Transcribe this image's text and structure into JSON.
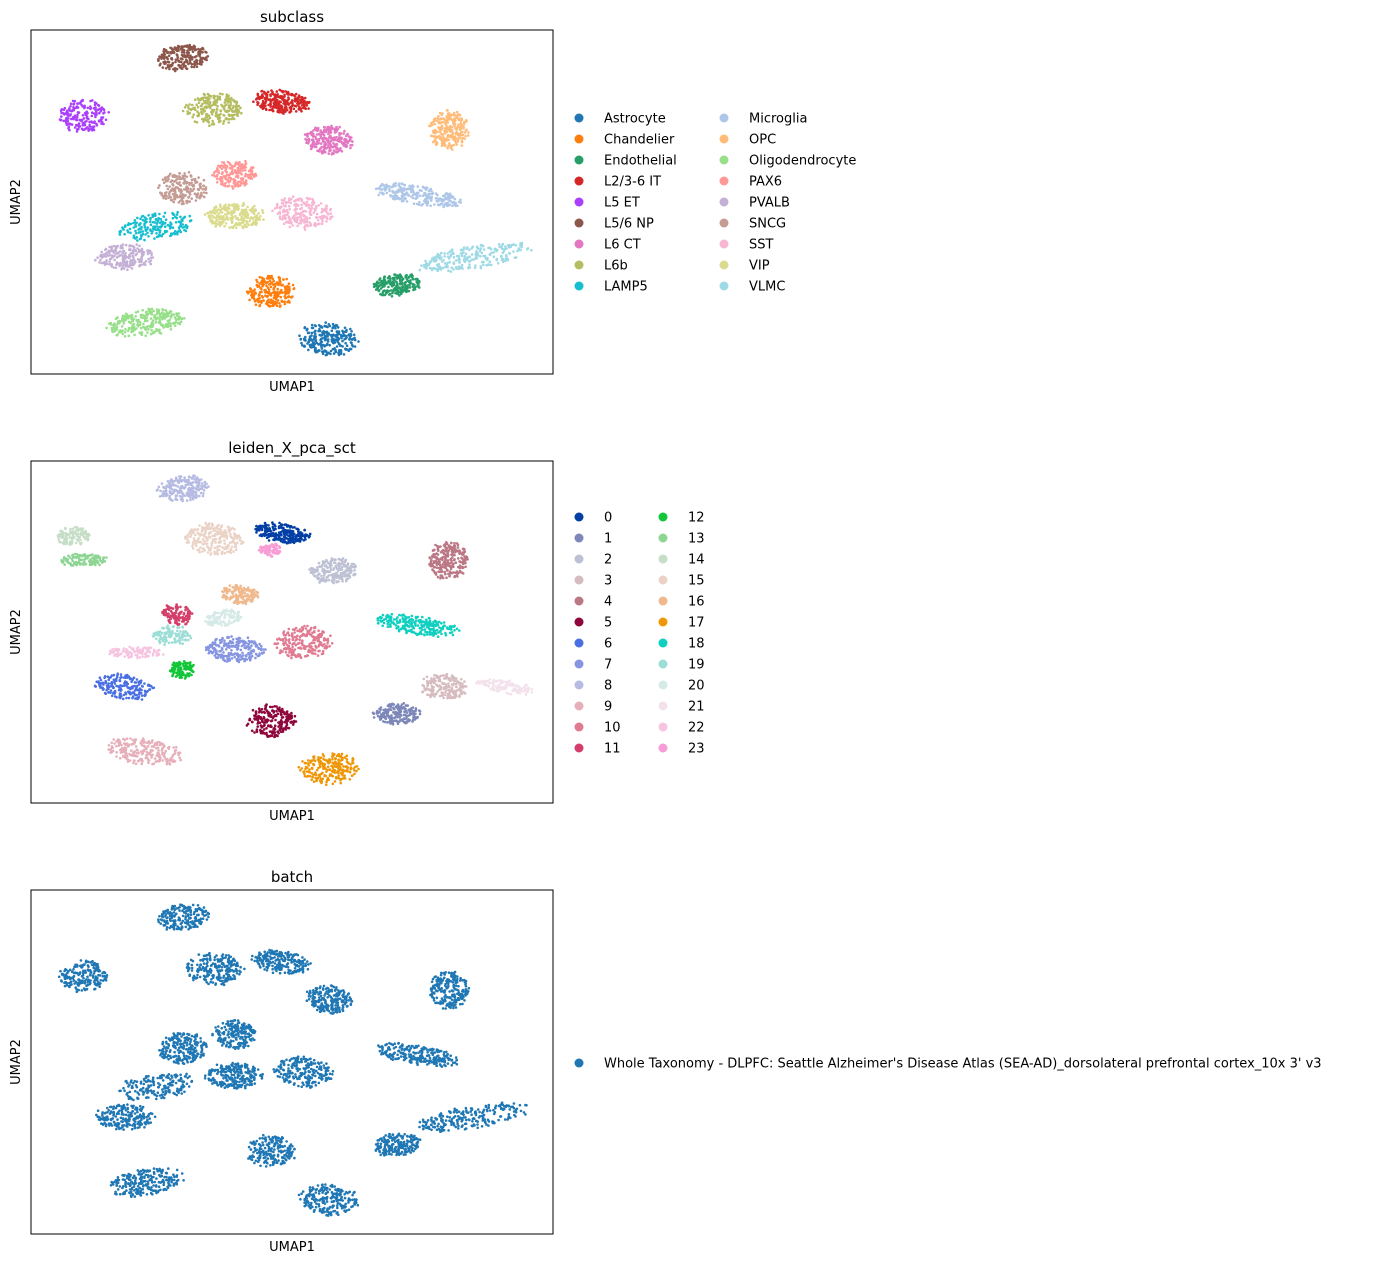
{
  "chart_data": [
    {
      "type": "scatter",
      "title": "subclass",
      "xlabel": "UMAP1",
      "ylabel": "UMAP2",
      "xlim": [
        0,
        100
      ],
      "ylim": [
        0,
        100
      ],
      "grid": false,
      "legend_placement": "right",
      "legend_columns": 2,
      "categories": [
        {
          "name": "Astrocyte",
          "color": "#1f77b4"
        },
        {
          "name": "Chandelier",
          "color": "#ff7f0e"
        },
        {
          "name": "Endothelial",
          "color": "#279e68"
        },
        {
          "name": "L2/3-6 IT",
          "color": "#d62728"
        },
        {
          "name": "L5 ET",
          "color": "#aa40fc"
        },
        {
          "name": "L5/6 NP",
          "color": "#8c564b"
        },
        {
          "name": "L6 CT",
          "color": "#e377c2"
        },
        {
          "name": "L6b",
          "color": "#b5bd61"
        },
        {
          "name": "LAMP5",
          "color": "#17becf"
        },
        {
          "name": "Microglia",
          "color": "#aec7e8"
        },
        {
          "name": "OPC",
          "color": "#ffbb78"
        },
        {
          "name": "Oligodendrocyte",
          "color": "#98df8a"
        },
        {
          "name": "PAX6",
          "color": "#ff9896"
        },
        {
          "name": "PVALB",
          "color": "#c5b0d5"
        },
        {
          "name": "SNCG",
          "color": "#c49c94"
        },
        {
          "name": "SST",
          "color": "#f7b6d2"
        },
        {
          "name": "VIP",
          "color": "#dbdb8d"
        },
        {
          "name": "VLMC",
          "color": "#9edae5"
        }
      ],
      "clusters": [
        {
          "label": "Astrocyte",
          "cx": 57,
          "cy": 10,
          "rx": 6,
          "ry": 5,
          "n": 260
        },
        {
          "label": "Chandelier",
          "cx": 46,
          "cy": 24,
          "rx": 5,
          "ry": 5,
          "n": 220
        },
        {
          "label": "Endothelial",
          "cx": 70,
          "cy": 26,
          "rx": 5,
          "ry": 3.5,
          "n": 220
        },
        {
          "label": "L2/3-6 IT",
          "cx": 48,
          "cy": 79,
          "rx": 6,
          "ry": 3.5,
          "n": 260
        },
        {
          "label": "L5 ET",
          "cx": 10,
          "cy": 75,
          "rx": 5,
          "ry": 5,
          "n": 200
        },
        {
          "label": "L5/6 NP",
          "cx": 29,
          "cy": 92,
          "rx": 5.5,
          "ry": 4,
          "n": 220
        },
        {
          "label": "L6 CT",
          "cx": 57,
          "cy": 68,
          "rx": 5,
          "ry": 4.5,
          "n": 240
        },
        {
          "label": "L6b",
          "cx": 35,
          "cy": 77,
          "rx": 6,
          "ry": 5,
          "n": 240
        },
        {
          "label": "LAMP5",
          "cx": 24,
          "cy": 43,
          "rx": 8,
          "ry": 4,
          "n": 190
        },
        {
          "label": "Microglia",
          "cx": 74,
          "cy": 52,
          "rx": 9,
          "ry": 3,
          "n": 260
        },
        {
          "label": "OPC",
          "cx": 80,
          "cy": 71,
          "rx": 4,
          "ry": 6,
          "n": 240
        },
        {
          "label": "Oligodendrocyte",
          "cx": 22,
          "cy": 15,
          "rx": 8,
          "ry": 4,
          "n": 260
        },
        {
          "label": "PAX6",
          "cx": 39,
          "cy": 58,
          "rx": 4.5,
          "ry": 4.5,
          "n": 200
        },
        {
          "label": "PVALB",
          "cx": 18,
          "cy": 34,
          "rx": 6,
          "ry": 4,
          "n": 200
        },
        {
          "label": "SNCG",
          "cx": 29,
          "cy": 54,
          "rx": 5,
          "ry": 5,
          "n": 200
        },
        {
          "label": "SST",
          "cx": 52,
          "cy": 47,
          "rx": 6,
          "ry": 5,
          "n": 220
        },
        {
          "label": "VIP",
          "cx": 39,
          "cy": 46,
          "rx": 6,
          "ry": 4,
          "n": 260
        },
        {
          "label": "VLMC",
          "cx": 85,
          "cy": 34,
          "rx": 12,
          "ry": 3.5,
          "n": 240
        }
      ]
    },
    {
      "type": "scatter",
      "title": "leiden_X_pca_sct",
      "xlabel": "UMAP1",
      "ylabel": "UMAP2",
      "xlim": [
        0,
        100
      ],
      "ylim": [
        0,
        100
      ],
      "grid": false,
      "legend_placement": "right",
      "legend_columns": 2,
      "categories": [
        {
          "name": "0",
          "color": "#023fa5"
        },
        {
          "name": "1",
          "color": "#7d87b9"
        },
        {
          "name": "2",
          "color": "#bec1d4"
        },
        {
          "name": "3",
          "color": "#d6bcc0"
        },
        {
          "name": "4",
          "color": "#bb7784"
        },
        {
          "name": "5",
          "color": "#8e063b"
        },
        {
          "name": "6",
          "color": "#4a6fe3"
        },
        {
          "name": "7",
          "color": "#8595e1"
        },
        {
          "name": "8",
          "color": "#b5bbe3"
        },
        {
          "name": "9",
          "color": "#e6afb9"
        },
        {
          "name": "10",
          "color": "#e07b91"
        },
        {
          "name": "11",
          "color": "#d33f6a"
        },
        {
          "name": "12",
          "color": "#11c638"
        },
        {
          "name": "13",
          "color": "#8dd593"
        },
        {
          "name": "14",
          "color": "#c6dec7"
        },
        {
          "name": "15",
          "color": "#ead3c6"
        },
        {
          "name": "16",
          "color": "#f0b98d"
        },
        {
          "name": "17",
          "color": "#ef9708"
        },
        {
          "name": "18",
          "color": "#0fcfc0"
        },
        {
          "name": "19",
          "color": "#9cded6"
        },
        {
          "name": "20",
          "color": "#d5eae7"
        },
        {
          "name": "21",
          "color": "#f3e1eb"
        },
        {
          "name": "22",
          "color": "#f6c4e1"
        },
        {
          "name": "23",
          "color": "#f79cd4"
        }
      ],
      "clusters": [
        {
          "label": "0",
          "cx": 48,
          "cy": 79,
          "rx": 6,
          "ry": 3,
          "n": 240
        },
        {
          "label": "1",
          "cx": 70,
          "cy": 26,
          "rx": 5,
          "ry": 3.5,
          "n": 200
        },
        {
          "label": "2",
          "cx": 58,
          "cy": 68,
          "rx": 5,
          "ry": 4,
          "n": 220
        },
        {
          "label": "3",
          "cx": 79,
          "cy": 34,
          "rx": 5,
          "ry": 4,
          "n": 180
        },
        {
          "label": "4",
          "cx": 80,
          "cy": 71,
          "rx": 4,
          "ry": 6,
          "n": 240
        },
        {
          "label": "5",
          "cx": 46,
          "cy": 24,
          "rx": 5,
          "ry": 5,
          "n": 220
        },
        {
          "label": "6",
          "cx": 18,
          "cy": 34,
          "rx": 6,
          "ry": 4,
          "n": 200
        },
        {
          "label": "7",
          "cx": 39,
          "cy": 45,
          "rx": 6,
          "ry": 4,
          "n": 220
        },
        {
          "label": "8",
          "cx": 29,
          "cy": 92,
          "rx": 5.5,
          "ry": 4,
          "n": 220
        },
        {
          "label": "9",
          "cx": 22,
          "cy": 15,
          "rx": 8,
          "ry": 4,
          "n": 240
        },
        {
          "label": "10",
          "cx": 52,
          "cy": 47,
          "rx": 6,
          "ry": 5,
          "n": 220
        },
        {
          "label": "11",
          "cx": 28,
          "cy": 55,
          "rx": 3,
          "ry": 3.5,
          "n": 120
        },
        {
          "label": "12",
          "cx": 29,
          "cy": 39,
          "rx": 2.5,
          "ry": 3,
          "n": 110
        },
        {
          "label": "13",
          "cx": 10,
          "cy": 71,
          "rx": 5,
          "ry": 2,
          "n": 130
        },
        {
          "label": "14",
          "cx": 8,
          "cy": 78,
          "rx": 3.5,
          "ry": 3,
          "n": 120
        },
        {
          "label": "15",
          "cx": 35,
          "cy": 77,
          "rx": 6,
          "ry": 5,
          "n": 240
        },
        {
          "label": "16",
          "cx": 40,
          "cy": 61,
          "rx": 4,
          "ry": 3,
          "n": 140
        },
        {
          "label": "17",
          "cx": 57,
          "cy": 10,
          "rx": 6,
          "ry": 5,
          "n": 240
        },
        {
          "label": "18",
          "cx": 74,
          "cy": 52,
          "rx": 9,
          "ry": 3,
          "n": 240
        },
        {
          "label": "19",
          "cx": 27,
          "cy": 49,
          "rx": 4,
          "ry": 3,
          "n": 120
        },
        {
          "label": "20",
          "cx": 37,
          "cy": 54,
          "rx": 4,
          "ry": 2.5,
          "n": 110
        },
        {
          "label": "21",
          "cx": 91,
          "cy": 34,
          "rx": 6,
          "ry": 2,
          "n": 120
        },
        {
          "label": "22",
          "cx": 20,
          "cy": 44,
          "rx": 6,
          "ry": 1.8,
          "n": 110
        },
        {
          "label": "23",
          "cx": 46,
          "cy": 74,
          "rx": 2.5,
          "ry": 2,
          "n": 80
        }
      ]
    },
    {
      "type": "scatter",
      "title": "batch",
      "xlabel": "UMAP1",
      "ylabel": "UMAP2",
      "xlim": [
        0,
        100
      ],
      "ylim": [
        0,
        100
      ],
      "grid": false,
      "legend_placement": "right",
      "legend_columns": 1,
      "categories": [
        {
          "name": "Whole Taxonomy - DLPFC: Seattle Alzheimer's Disease Atlas (SEA-AD)_dorsolateral prefrontal cortex_10x 3' v3",
          "color": "#1f77b4"
        }
      ],
      "clusters": [
        {
          "label": "Whole Taxonomy - DLPFC: Seattle Alzheimer's Disease Atlas (SEA-AD)_dorsolateral prefrontal cortex_10x 3' v3",
          "cx": 57,
          "cy": 10,
          "rx": 6,
          "ry": 5,
          "n": 220
        },
        {
          "label": "Whole Taxonomy - DLPFC: Seattle Alzheimer's Disease Atlas (SEA-AD)_dorsolateral prefrontal cortex_10x 3' v3",
          "cx": 46,
          "cy": 24,
          "rx": 5,
          "ry": 5,
          "n": 200
        },
        {
          "label": "Whole Taxonomy - DLPFC: Seattle Alzheimer's Disease Atlas (SEA-AD)_dorsolateral prefrontal cortex_10x 3' v3",
          "cx": 70,
          "cy": 26,
          "rx": 5,
          "ry": 3.5,
          "n": 200
        },
        {
          "label": "Whole Taxonomy - DLPFC: Seattle Alzheimer's Disease Atlas (SEA-AD)_dorsolateral prefrontal cortex_10x 3' v3",
          "cx": 48,
          "cy": 79,
          "rx": 6,
          "ry": 3.5,
          "n": 220
        },
        {
          "label": "Whole Taxonomy - DLPFC: Seattle Alzheimer's Disease Atlas (SEA-AD)_dorsolateral prefrontal cortex_10x 3' v3",
          "cx": 10,
          "cy": 75,
          "rx": 5,
          "ry": 5,
          "n": 200
        },
        {
          "label": "Whole Taxonomy - DLPFC: Seattle Alzheimer's Disease Atlas (SEA-AD)_dorsolateral prefrontal cortex_10x 3' v3",
          "cx": 29,
          "cy": 92,
          "rx": 5.5,
          "ry": 4,
          "n": 200
        },
        {
          "label": "Whole Taxonomy - DLPFC: Seattle Alzheimer's Disease Atlas (SEA-AD)_dorsolateral prefrontal cortex_10x 3' v3",
          "cx": 57,
          "cy": 68,
          "rx": 5,
          "ry": 4.5,
          "n": 220
        },
        {
          "label": "Whole Taxonomy - DLPFC: Seattle Alzheimer's Disease Atlas (SEA-AD)_dorsolateral prefrontal cortex_10x 3' v3",
          "cx": 35,
          "cy": 77,
          "rx": 6,
          "ry": 5,
          "n": 220
        },
        {
          "label": "Whole Taxonomy - DLPFC: Seattle Alzheimer's Disease Atlas (SEA-AD)_dorsolateral prefrontal cortex_10x 3' v3",
          "cx": 24,
          "cy": 43,
          "rx": 8,
          "ry": 4,
          "n": 180
        },
        {
          "label": "Whole Taxonomy - DLPFC: Seattle Alzheimer's Disease Atlas (SEA-AD)_dorsolateral prefrontal cortex_10x 3' v3",
          "cx": 74,
          "cy": 52,
          "rx": 9,
          "ry": 3,
          "n": 240
        },
        {
          "label": "Whole Taxonomy - DLPFC: Seattle Alzheimer's Disease Atlas (SEA-AD)_dorsolateral prefrontal cortex_10x 3' v3",
          "cx": 80,
          "cy": 71,
          "rx": 4,
          "ry": 6,
          "n": 220
        },
        {
          "label": "Whole Taxonomy - DLPFC: Seattle Alzheimer's Disease Atlas (SEA-AD)_dorsolateral prefrontal cortex_10x 3' v3",
          "cx": 22,
          "cy": 15,
          "rx": 8,
          "ry": 4,
          "n": 240
        },
        {
          "label": "Whole Taxonomy - DLPFC: Seattle Alzheimer's Disease Atlas (SEA-AD)_dorsolateral prefrontal cortex_10x 3' v3",
          "cx": 39,
          "cy": 58,
          "rx": 4.5,
          "ry": 4.5,
          "n": 200
        },
        {
          "label": "Whole Taxonomy - DLPFC: Seattle Alzheimer's Disease Atlas (SEA-AD)_dorsolateral prefrontal cortex_10x 3' v3",
          "cx": 18,
          "cy": 34,
          "rx": 6,
          "ry": 4,
          "n": 200
        },
        {
          "label": "Whole Taxonomy - DLPFC: Seattle Alzheimer's Disease Atlas (SEA-AD)_dorsolateral prefrontal cortex_10x 3' v3",
          "cx": 29,
          "cy": 54,
          "rx": 5,
          "ry": 5,
          "n": 220
        },
        {
          "label": "Whole Taxonomy - DLPFC: Seattle Alzheimer's Disease Atlas (SEA-AD)_dorsolateral prefrontal cortex_10x 3' v3",
          "cx": 52,
          "cy": 47,
          "rx": 6,
          "ry": 5,
          "n": 220
        },
        {
          "label": "Whole Taxonomy - DLPFC: Seattle Alzheimer's Disease Atlas (SEA-AD)_dorsolateral prefrontal cortex_10x 3' v3",
          "cx": 39,
          "cy": 46,
          "rx": 6,
          "ry": 4,
          "n": 240
        },
        {
          "label": "Whole Taxonomy - DLPFC: Seattle Alzheimer's Disease Atlas (SEA-AD)_dorsolateral prefrontal cortex_10x 3' v3",
          "cx": 85,
          "cy": 34,
          "rx": 12,
          "ry": 3.5,
          "n": 220
        }
      ]
    }
  ]
}
